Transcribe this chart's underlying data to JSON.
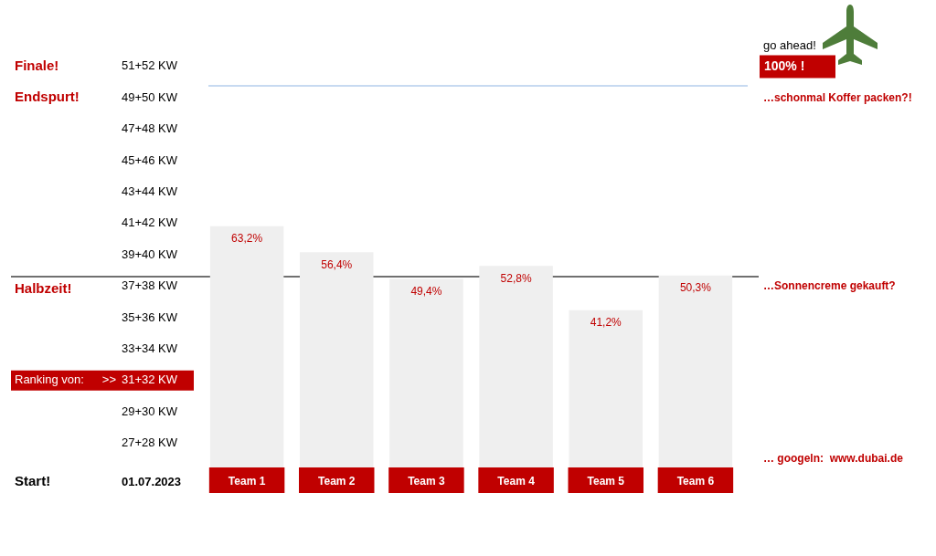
{
  "chart_data": {
    "type": "bar",
    "categories": [
      "Team 1",
      "Team 2",
      "Team 3",
      "Team 4",
      "Team 5",
      "Team 6"
    ],
    "values": [
      63.2,
      56.4,
      49.4,
      52.8,
      41.2,
      50.3
    ],
    "color": "#efefef",
    "value_labels": [
      "63,2%",
      "56,4%",
      "49,4%",
      "52,8%",
      "41,2%",
      "50,3%"
    ],
    "ylim": [
      0,
      100
    ],
    "tick_labels": "x",
    "ref_lines": [
      {
        "axis": "y",
        "value": 100,
        "label": "100% !",
        "color": "#8eb4e3"
      },
      {
        "axis": "y",
        "value": 50,
        "label": "Halbzeit!",
        "color": "#404040"
      }
    ],
    "annotations": [
      "Finale!",
      "Endspurt!",
      "Ranking von:",
      ">>",
      "Start!",
      "01.07.2023",
      "27+28 KW",
      "29+30 KW",
      "31+32 KW",
      "33+34 KW",
      "35+36 KW",
      "37+38 KW",
      "39+40 KW",
      "41+42 KW",
      "43+44 KW",
      "45+46 KW",
      "47+48 KW",
      "49+50 KW",
      "51+52 KW",
      "go ahead!",
      "…schonmal Koffer packen?!",
      "…Sonnencreme gekauft?",
      "… googeln:  www.dubai.de"
    ]
  }
}
